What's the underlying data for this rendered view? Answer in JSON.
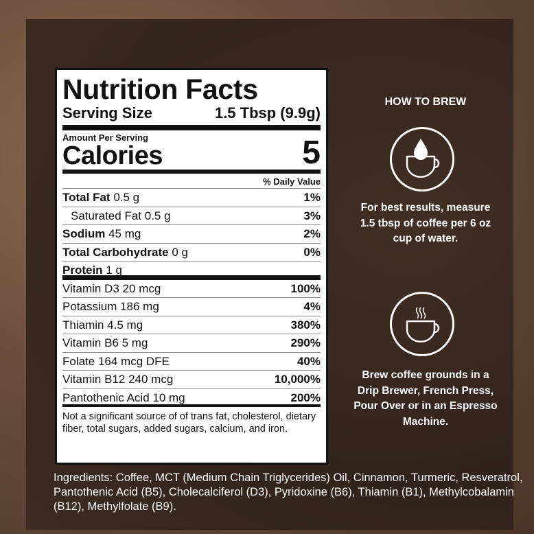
{
  "label": {
    "title": "Nutrition Facts",
    "serving_size_label": "Serving Size",
    "serving_size_value": "1.5 Tbsp (9.9g)",
    "amount_per_serving": "Amount Per Serving",
    "calories_label": "Calories",
    "calories_value": "5",
    "daily_value_header": "% Daily Value",
    "nutrients": [
      {
        "name": "Total Fat",
        "amount": "0.5 g",
        "dv": "1%",
        "bold": true
      },
      {
        "name": "Saturated Fat",
        "amount": "0.5 g",
        "dv": "3%",
        "bold": false
      },
      {
        "name": "Sodium",
        "amount": "45 mg",
        "dv": "2%",
        "bold": true
      },
      {
        "name": "Total Carbohydrate",
        "amount": "0 g",
        "dv": "0%",
        "bold": true
      },
      {
        "name": "Protein",
        "amount": "1 g",
        "dv": "",
        "bold": true
      }
    ],
    "vitamins": [
      {
        "text": "Vitamin D3 20 mcg",
        "dv": "100%"
      },
      {
        "text": "Potassium 186 mg",
        "dv": "4%"
      },
      {
        "text": "Thiamin 4.5 mg",
        "dv": "380%"
      },
      {
        "text": "Vitamin B6 5 mg",
        "dv": "290%"
      },
      {
        "text": "Folate 164 mcg DFE",
        "dv": "40%"
      },
      {
        "text": "Vitamin B12 240 mcg",
        "dv": "10,000%"
      },
      {
        "text": "Pantothenic Acid 10 mg",
        "dv": "200%"
      }
    ],
    "footnote": "Not a significant source of of trans fat, cholesterol, dietary fiber, total sugars, added sugars, calcium, and iron."
  },
  "ingredients": "Ingredients: Coffee, MCT (Medium Chain Triglycerides) Oil, Cinnamon, Turmeric, Resveratrol, Pantothenic Acid (B5), Cholecalciferol (D3), Pyridoxine (B6), Thiamin (B1), Methylcobalamin (B12), Methylfolate (B9).",
  "brew": {
    "heading": "HOW TO BREW",
    "step1": "For best results, measure 1.5 tbsp of coffee per 6 oz cup of water.",
    "step2": "Brew coffee grounds in a Drip Brewer, French Press, Pour Over or in an Espresso Machine.",
    "icon1": "water-drop-cup-icon",
    "icon2": "steaming-cup-icon"
  }
}
